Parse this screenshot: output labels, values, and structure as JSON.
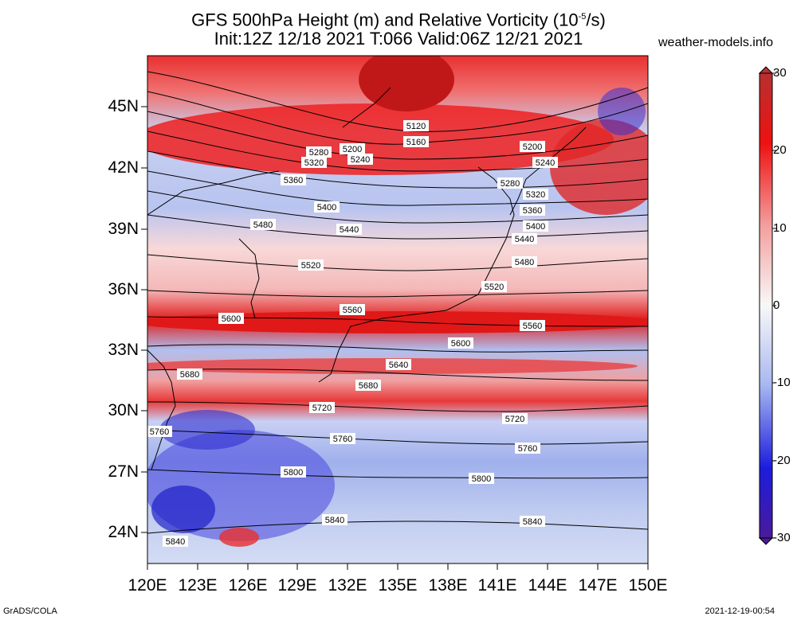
{
  "header": {
    "title": "GFS 500hPa Height (m) and Relative Vorticity (10",
    "title_exp": "-5",
    "title_end": "/s)",
    "subtitle": "Init:12Z 12/18 2021 T:066 Valid:06Z 12/21 2021",
    "site": "weather-models.info"
  },
  "axes": {
    "lat_labels": [
      "45N",
      "42N",
      "39N",
      "36N",
      "33N",
      "30N",
      "27N",
      "24N"
    ],
    "lon_labels": [
      "120E",
      "123E",
      "126E",
      "129E",
      "132E",
      "135E",
      "138E",
      "141E",
      "144E",
      "147E",
      "150E"
    ]
  },
  "colorbar": {
    "ticks": [
      "30",
      "20",
      "10",
      "0",
      "-10",
      "-20",
      "-30"
    ],
    "colors": {
      "top": "#b83030",
      "red": "#ee1111",
      "pink": "#f4a0a0",
      "white": "#f8f8f8",
      "lightblue": "#a8b8f0",
      "blue": "#1c1cdd",
      "bottom": "#4a1a9a"
    }
  },
  "contours": {
    "labels": [
      "5120",
      "5160",
      "5200",
      "5240",
      "5280",
      "5320",
      "5360",
      "5400",
      "5440",
      "5480",
      "5520",
      "5560",
      "5600",
      "5640",
      "5680",
      "5720",
      "5760",
      "5800",
      "5840"
    ]
  },
  "footer": {
    "left": "GrADS/COLA",
    "right": "2021-12-19-00:54"
  }
}
